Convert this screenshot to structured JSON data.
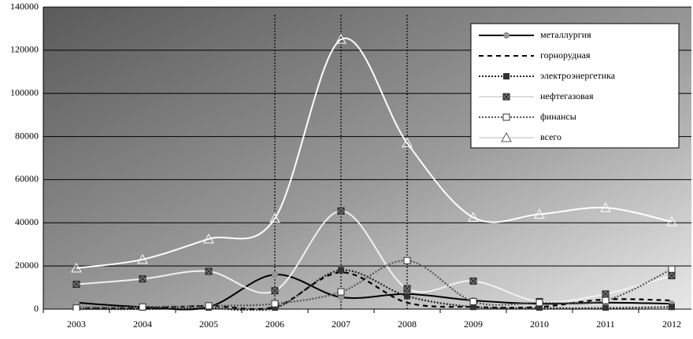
{
  "chart_data": {
    "type": "line",
    "categories": [
      "2003",
      "2004",
      "2005",
      "2006",
      "2007",
      "2008",
      "2009",
      "2010",
      "2011",
      "2012"
    ],
    "ylim": [
      0,
      140000
    ],
    "yticks": [
      0,
      20000,
      40000,
      60000,
      80000,
      100000,
      120000,
      140000
    ],
    "grid": true,
    "reference_lines_x": [
      "2006",
      "2007",
      "2008"
    ],
    "legend": "upper right",
    "series": [
      {
        "name": "металлургия",
        "color": "#000000",
        "dash": "solid",
        "marker": "circle",
        "values": [
          3000,
          1000,
          1000,
          16000,
          5500,
          7000,
          4000,
          2500,
          3000,
          2500
        ]
      },
      {
        "name": "горнорудная",
        "color": "#000000",
        "dash": "dash",
        "marker": "none",
        "values": [
          500,
          500,
          1500,
          1000,
          17000,
          3000,
          1000,
          1000,
          4500,
          4000
        ]
      },
      {
        "name": "электроэнергетика",
        "color": "#222222",
        "dash": "dot",
        "marker": "square-filled",
        "values": [
          0,
          0,
          500,
          500,
          18000,
          6000,
          1000,
          500,
          500,
          1000
        ]
      },
      {
        "name": "нефтегазовая",
        "color": "#f0f0f0",
        "dash": "solid",
        "marker": "square-x",
        "values": [
          11500,
          14000,
          17500,
          8500,
          45500,
          9500,
          13000,
          3500,
          7000,
          15500
        ]
      },
      {
        "name": "финансы",
        "color": "#555555",
        "dash": "dot",
        "marker": "square",
        "values": [
          500,
          1000,
          1500,
          2500,
          8000,
          22500,
          3500,
          3000,
          4000,
          18500
        ]
      },
      {
        "name": "всего",
        "color": "#ffffff",
        "dash": "solid",
        "marker": "triangle",
        "values": [
          19000,
          23000,
          32500,
          42000,
          125000,
          77000,
          42500,
          44000,
          47000,
          40500
        ]
      }
    ]
  }
}
